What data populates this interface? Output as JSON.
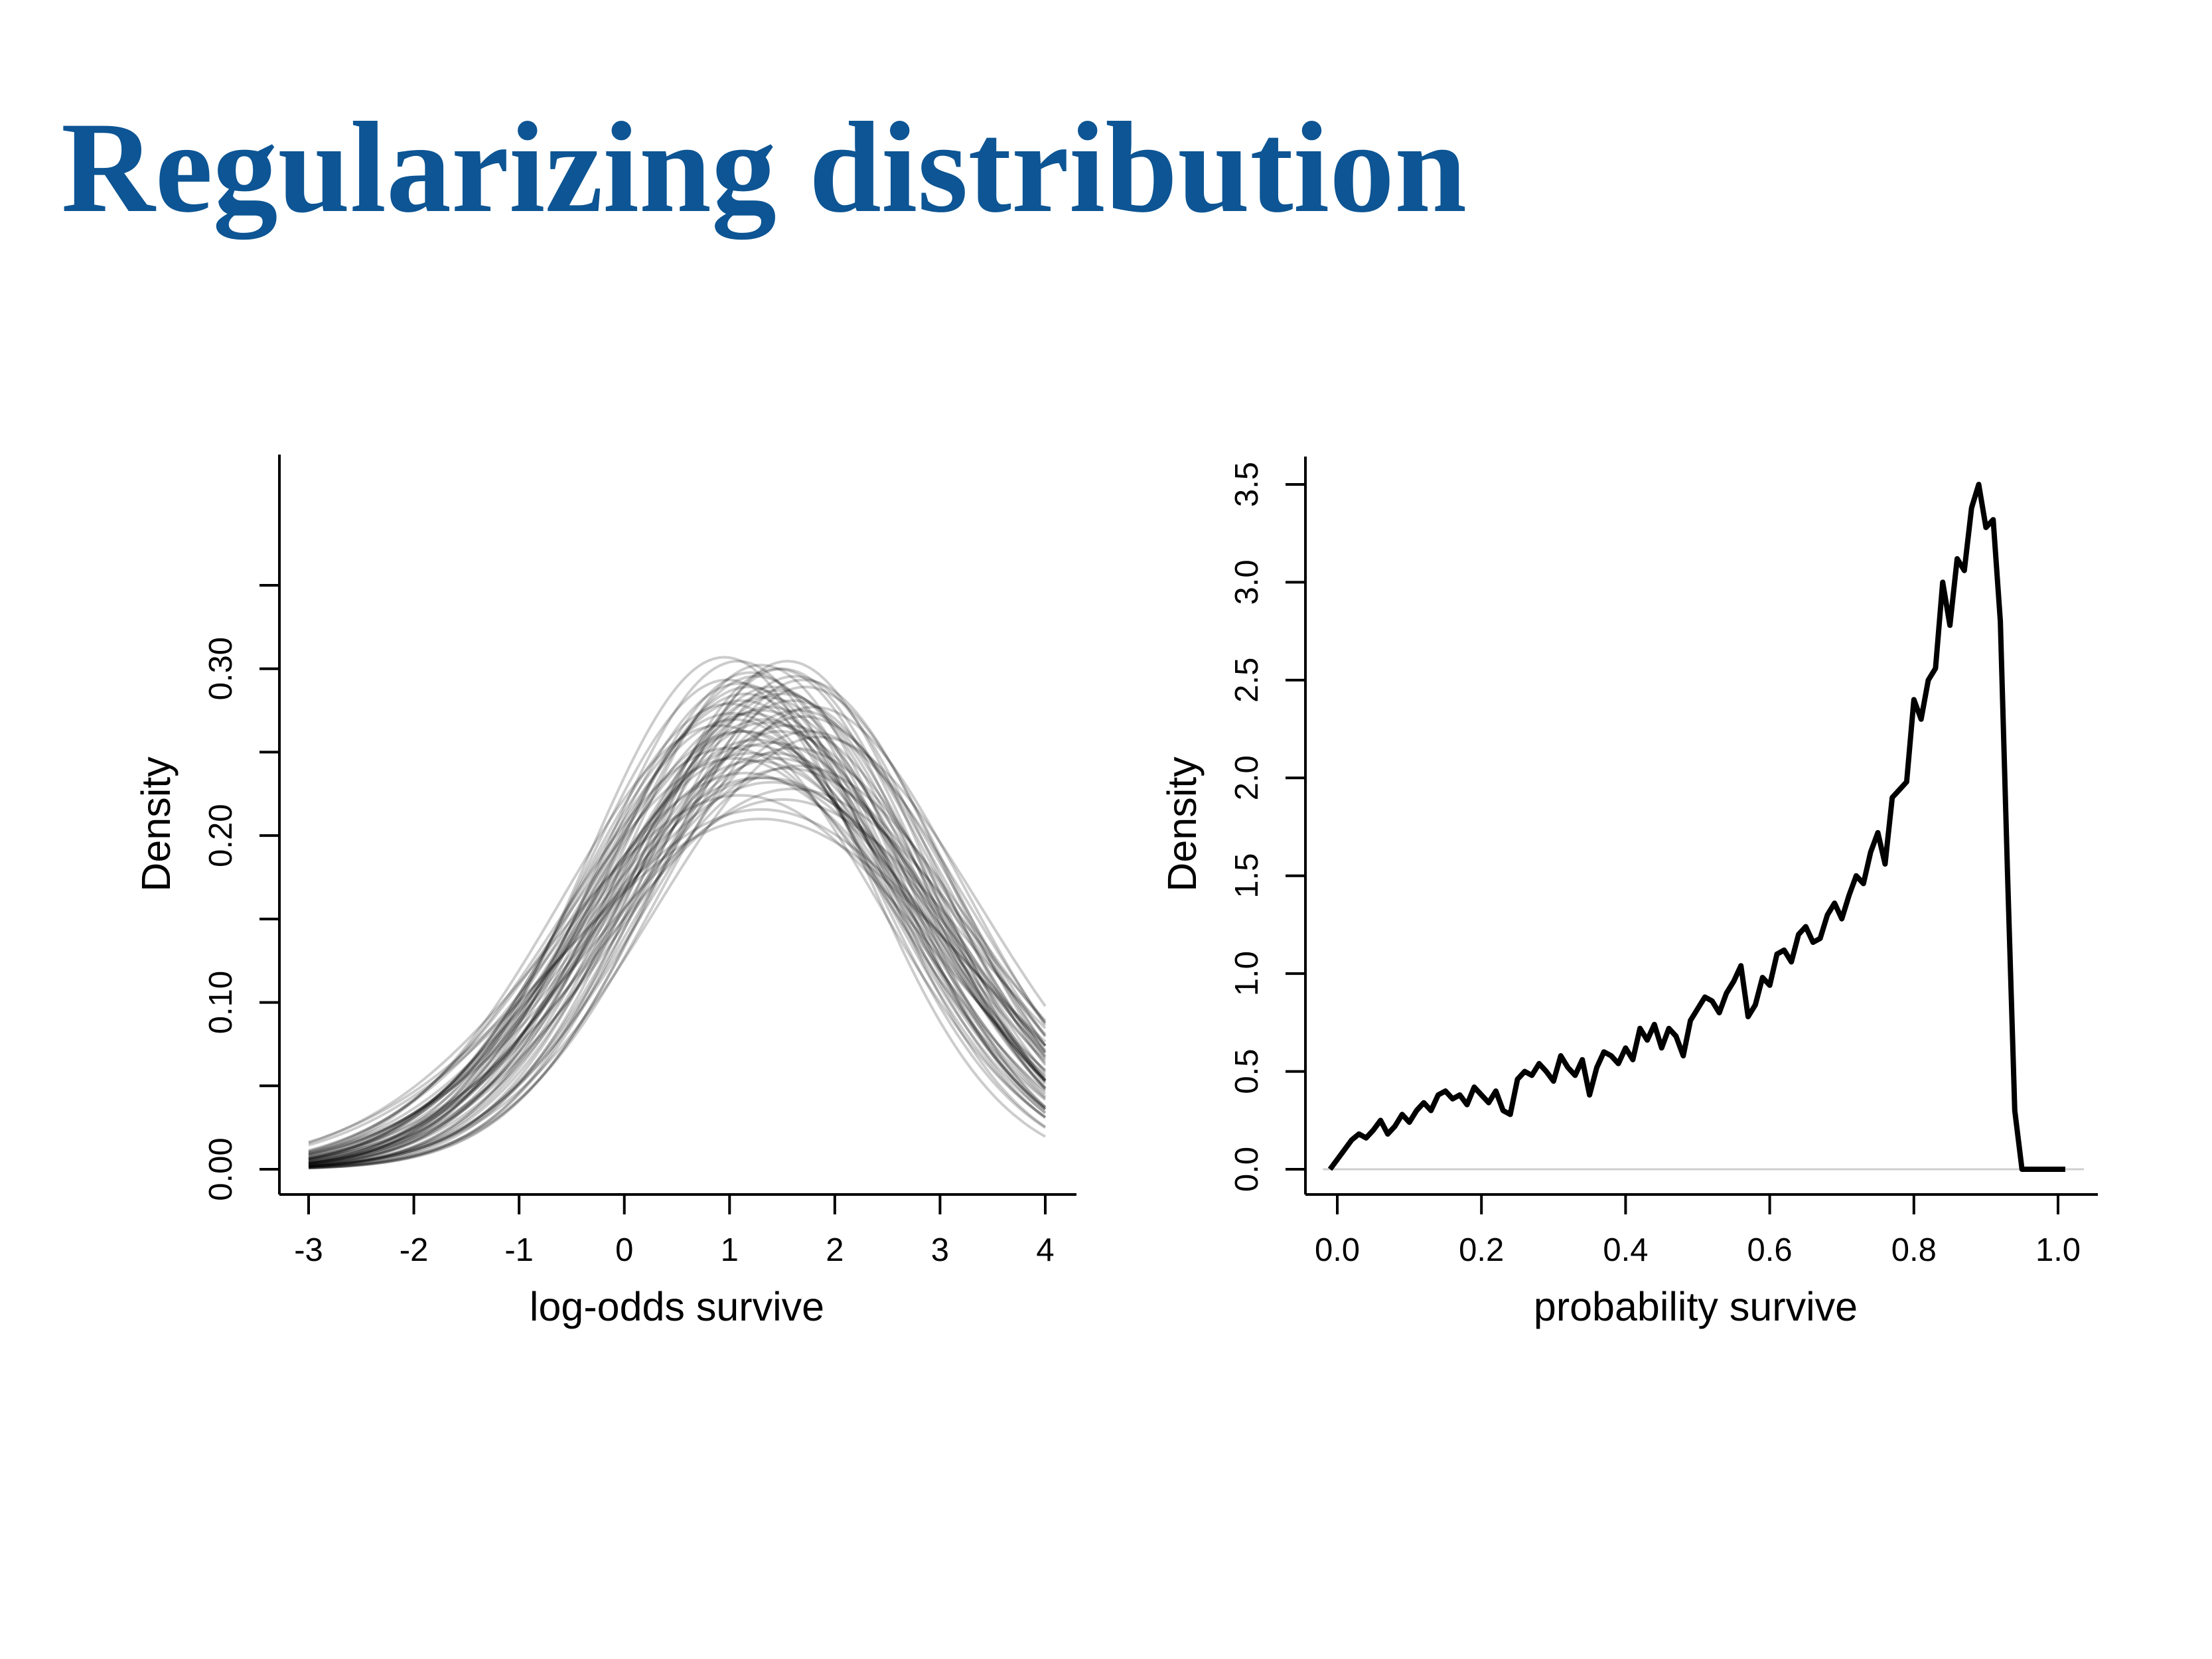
{
  "slide": {
    "title": "Regularizing distribution"
  },
  "chart_data": [
    {
      "type": "line",
      "ensemble": true,
      "title": "",
      "xlabel": "log-odds survive",
      "ylabel": "Density",
      "xlim": [
        -3,
        4
      ],
      "ylim": [
        0,
        0.35
      ],
      "x_ticks": [
        -3,
        -2,
        -1,
        0,
        1,
        2,
        3,
        4
      ],
      "x_tick_labels": [
        "-3",
        "-2",
        "-1",
        "0",
        "1",
        "2",
        "3",
        "4"
      ],
      "y_ticks": [
        0,
        0.05,
        0.1,
        0.15,
        0.2,
        0.25,
        0.3,
        0.35
      ],
      "y_tick_labels": [
        "0.00",
        "",
        "0.10",
        "",
        "0.20",
        "",
        "0.30",
        ""
      ],
      "grid": false,
      "legend": "none",
      "line_color": "#000000",
      "line_opacity": 0.2,
      "series_form": "normal density curves, density = exp(-(x-mu)^2/(2*sigma^2)) / (sigma*sqrt(2*pi))",
      "series": [
        {
          "mu": 1.3,
          "sigma": 1.45
        },
        {
          "mu": 1.4,
          "sigma": 1.38
        },
        {
          "mu": 1.1,
          "sigma": 1.52
        },
        {
          "mu": 1.5,
          "sigma": 1.33
        },
        {
          "mu": 1.2,
          "sigma": 1.6
        },
        {
          "mu": 0.95,
          "sigma": 1.3
        },
        {
          "mu": 1.6,
          "sigma": 1.42
        },
        {
          "mu": 1.35,
          "sigma": 1.7
        },
        {
          "mu": 1.05,
          "sigma": 1.48
        },
        {
          "mu": 1.7,
          "sigma": 1.36
        },
        {
          "mu": 1.25,
          "sigma": 1.55
        },
        {
          "mu": 1.45,
          "sigma": 1.62
        },
        {
          "mu": 1.15,
          "sigma": 1.4
        },
        {
          "mu": 1.55,
          "sigma": 1.5
        },
        {
          "mu": 1.0,
          "sigma": 1.58
        },
        {
          "mu": 1.8,
          "sigma": 1.44
        },
        {
          "mu": 1.3,
          "sigma": 1.32
        },
        {
          "mu": 1.6,
          "sigma": 1.75
        },
        {
          "mu": 1.2,
          "sigma": 1.46
        },
        {
          "mu": 1.4,
          "sigma": 1.56
        },
        {
          "mu": 1.1,
          "sigma": 1.37
        },
        {
          "mu": 1.65,
          "sigma": 1.65
        },
        {
          "mu": 1.35,
          "sigma": 1.41
        },
        {
          "mu": 0.9,
          "sigma": 1.5
        },
        {
          "mu": 1.5,
          "sigma": 1.8
        },
        {
          "mu": 1.25,
          "sigma": 1.35
        },
        {
          "mu": 1.75,
          "sigma": 1.52
        },
        {
          "mu": 1.15,
          "sigma": 1.68
        },
        {
          "mu": 1.45,
          "sigma": 1.39
        },
        {
          "mu": 1.05,
          "sigma": 1.62
        },
        {
          "mu": 1.55,
          "sigma": 1.31
        },
        {
          "mu": 1.3,
          "sigma": 1.85
        },
        {
          "mu": 1.7,
          "sigma": 1.47
        },
        {
          "mu": 1.0,
          "sigma": 1.43
        },
        {
          "mu": 1.4,
          "sigma": 1.72
        },
        {
          "mu": 1.2,
          "sigma": 1.34
        },
        {
          "mu": 1.6,
          "sigma": 1.58
        },
        {
          "mu": 0.98,
          "sigma": 1.36
        },
        {
          "mu": 1.85,
          "sigma": 1.54
        },
        {
          "mu": 1.35,
          "sigma": 1.49
        },
        {
          "mu": 1.1,
          "sigma": 1.78
        },
        {
          "mu": 1.5,
          "sigma": 1.4
        },
        {
          "mu": 1.25,
          "sigma": 1.63
        },
        {
          "mu": 1.45,
          "sigma": 1.33
        },
        {
          "mu": 1.15,
          "sigma": 1.52
        },
        {
          "mu": 1.65,
          "sigma": 1.45
        },
        {
          "mu": 1.3,
          "sigma": 1.9
        },
        {
          "mu": 1.08,
          "sigma": 1.31
        },
        {
          "mu": 1.55,
          "sigma": 1.66
        },
        {
          "mu": 1.38,
          "sigma": 1.44
        },
        {
          "mu": 1.22,
          "sigma": 1.57
        },
        {
          "mu": 1.72,
          "sigma": 1.38
        },
        {
          "mu": 1.02,
          "sigma": 1.46
        },
        {
          "mu": 1.48,
          "sigma": 1.52
        },
        {
          "mu": 1.28,
          "sigma": 1.7
        },
        {
          "mu": 1.62,
          "sigma": 1.35
        },
        {
          "mu": 1.12,
          "sigma": 1.42
        },
        {
          "mu": 1.42,
          "sigma": 1.6
        },
        {
          "mu": 1.32,
          "sigma": 1.48
        },
        {
          "mu": 1.18,
          "sigma": 1.38
        }
      ]
    },
    {
      "type": "line",
      "title": "",
      "xlabel": "probability survive",
      "ylabel": "Density",
      "xlim": [
        0,
        1
      ],
      "ylim": [
        0,
        3.5
      ],
      "x_ticks": [
        0,
        0.2,
        0.4,
        0.6,
        0.8,
        1.0
      ],
      "x_tick_labels": [
        "0.0",
        "0.2",
        "0.4",
        "0.6",
        "0.8",
        "1.0"
      ],
      "y_ticks": [
        0,
        0.5,
        1,
        1.5,
        2,
        2.5,
        3,
        3.5
      ],
      "y_tick_labels": [
        "0.0",
        "0.5",
        "1.0",
        "1.5",
        "2.0",
        "2.5",
        "3.0",
        "3.5"
      ],
      "grid": false,
      "legend": "none",
      "baseline": 0,
      "line_color": "#000000",
      "x": [
        -0.01,
        0.0,
        0.01,
        0.02,
        0.03,
        0.04,
        0.05,
        0.06,
        0.07,
        0.08,
        0.09,
        0.1,
        0.11,
        0.12,
        0.13,
        0.14,
        0.15,
        0.16,
        0.17,
        0.18,
        0.19,
        0.2,
        0.21,
        0.22,
        0.23,
        0.24,
        0.25,
        0.26,
        0.27,
        0.28,
        0.29,
        0.3,
        0.31,
        0.32,
        0.33,
        0.34,
        0.35,
        0.36,
        0.37,
        0.38,
        0.39,
        0.4,
        0.41,
        0.42,
        0.43,
        0.44,
        0.45,
        0.46,
        0.47,
        0.48,
        0.49,
        0.5,
        0.51,
        0.52,
        0.53,
        0.54,
        0.55,
        0.56,
        0.57,
        0.58,
        0.59,
        0.6,
        0.61,
        0.62,
        0.63,
        0.64,
        0.65,
        0.66,
        0.67,
        0.68,
        0.69,
        0.7,
        0.71,
        0.72,
        0.73,
        0.74,
        0.75,
        0.76,
        0.77,
        0.78,
        0.79,
        0.8,
        0.81,
        0.82,
        0.83,
        0.84,
        0.85,
        0.86,
        0.87,
        0.88,
        0.89,
        0.9,
        0.91,
        0.92,
        0.93,
        0.94,
        0.95,
        0.96,
        0.97,
        0.98,
        0.99,
        0.995,
        1.0,
        1.005,
        1.01
      ],
      "y": [
        0.0,
        0.05,
        0.1,
        0.15,
        0.18,
        0.16,
        0.2,
        0.25,
        0.18,
        0.22,
        0.28,
        0.24,
        0.3,
        0.34,
        0.3,
        0.38,
        0.4,
        0.36,
        0.38,
        0.33,
        0.42,
        0.38,
        0.34,
        0.4,
        0.3,
        0.28,
        0.46,
        0.5,
        0.48,
        0.54,
        0.5,
        0.45,
        0.58,
        0.52,
        0.48,
        0.56,
        0.38,
        0.52,
        0.6,
        0.58,
        0.54,
        0.62,
        0.56,
        0.72,
        0.66,
        0.74,
        0.62,
        0.72,
        0.68,
        0.58,
        0.76,
        0.82,
        0.88,
        0.86,
        0.8,
        0.9,
        0.96,
        1.04,
        0.78,
        0.84,
        0.98,
        0.94,
        1.1,
        1.12,
        1.06,
        1.2,
        1.24,
        1.16,
        1.18,
        1.3,
        1.36,
        1.28,
        1.4,
        1.5,
        1.46,
        1.62,
        1.72,
        1.56,
        1.9,
        1.94,
        1.98,
        2.4,
        2.3,
        2.5,
        2.56,
        3.0,
        2.78,
        3.12,
        3.06,
        3.38,
        3.5,
        3.28,
        3.32,
        2.8,
        1.5,
        0.3,
        0.0,
        0.0,
        0.0,
        0.0,
        0.0,
        0.0,
        0.0,
        0.0,
        0.0
      ]
    }
  ]
}
